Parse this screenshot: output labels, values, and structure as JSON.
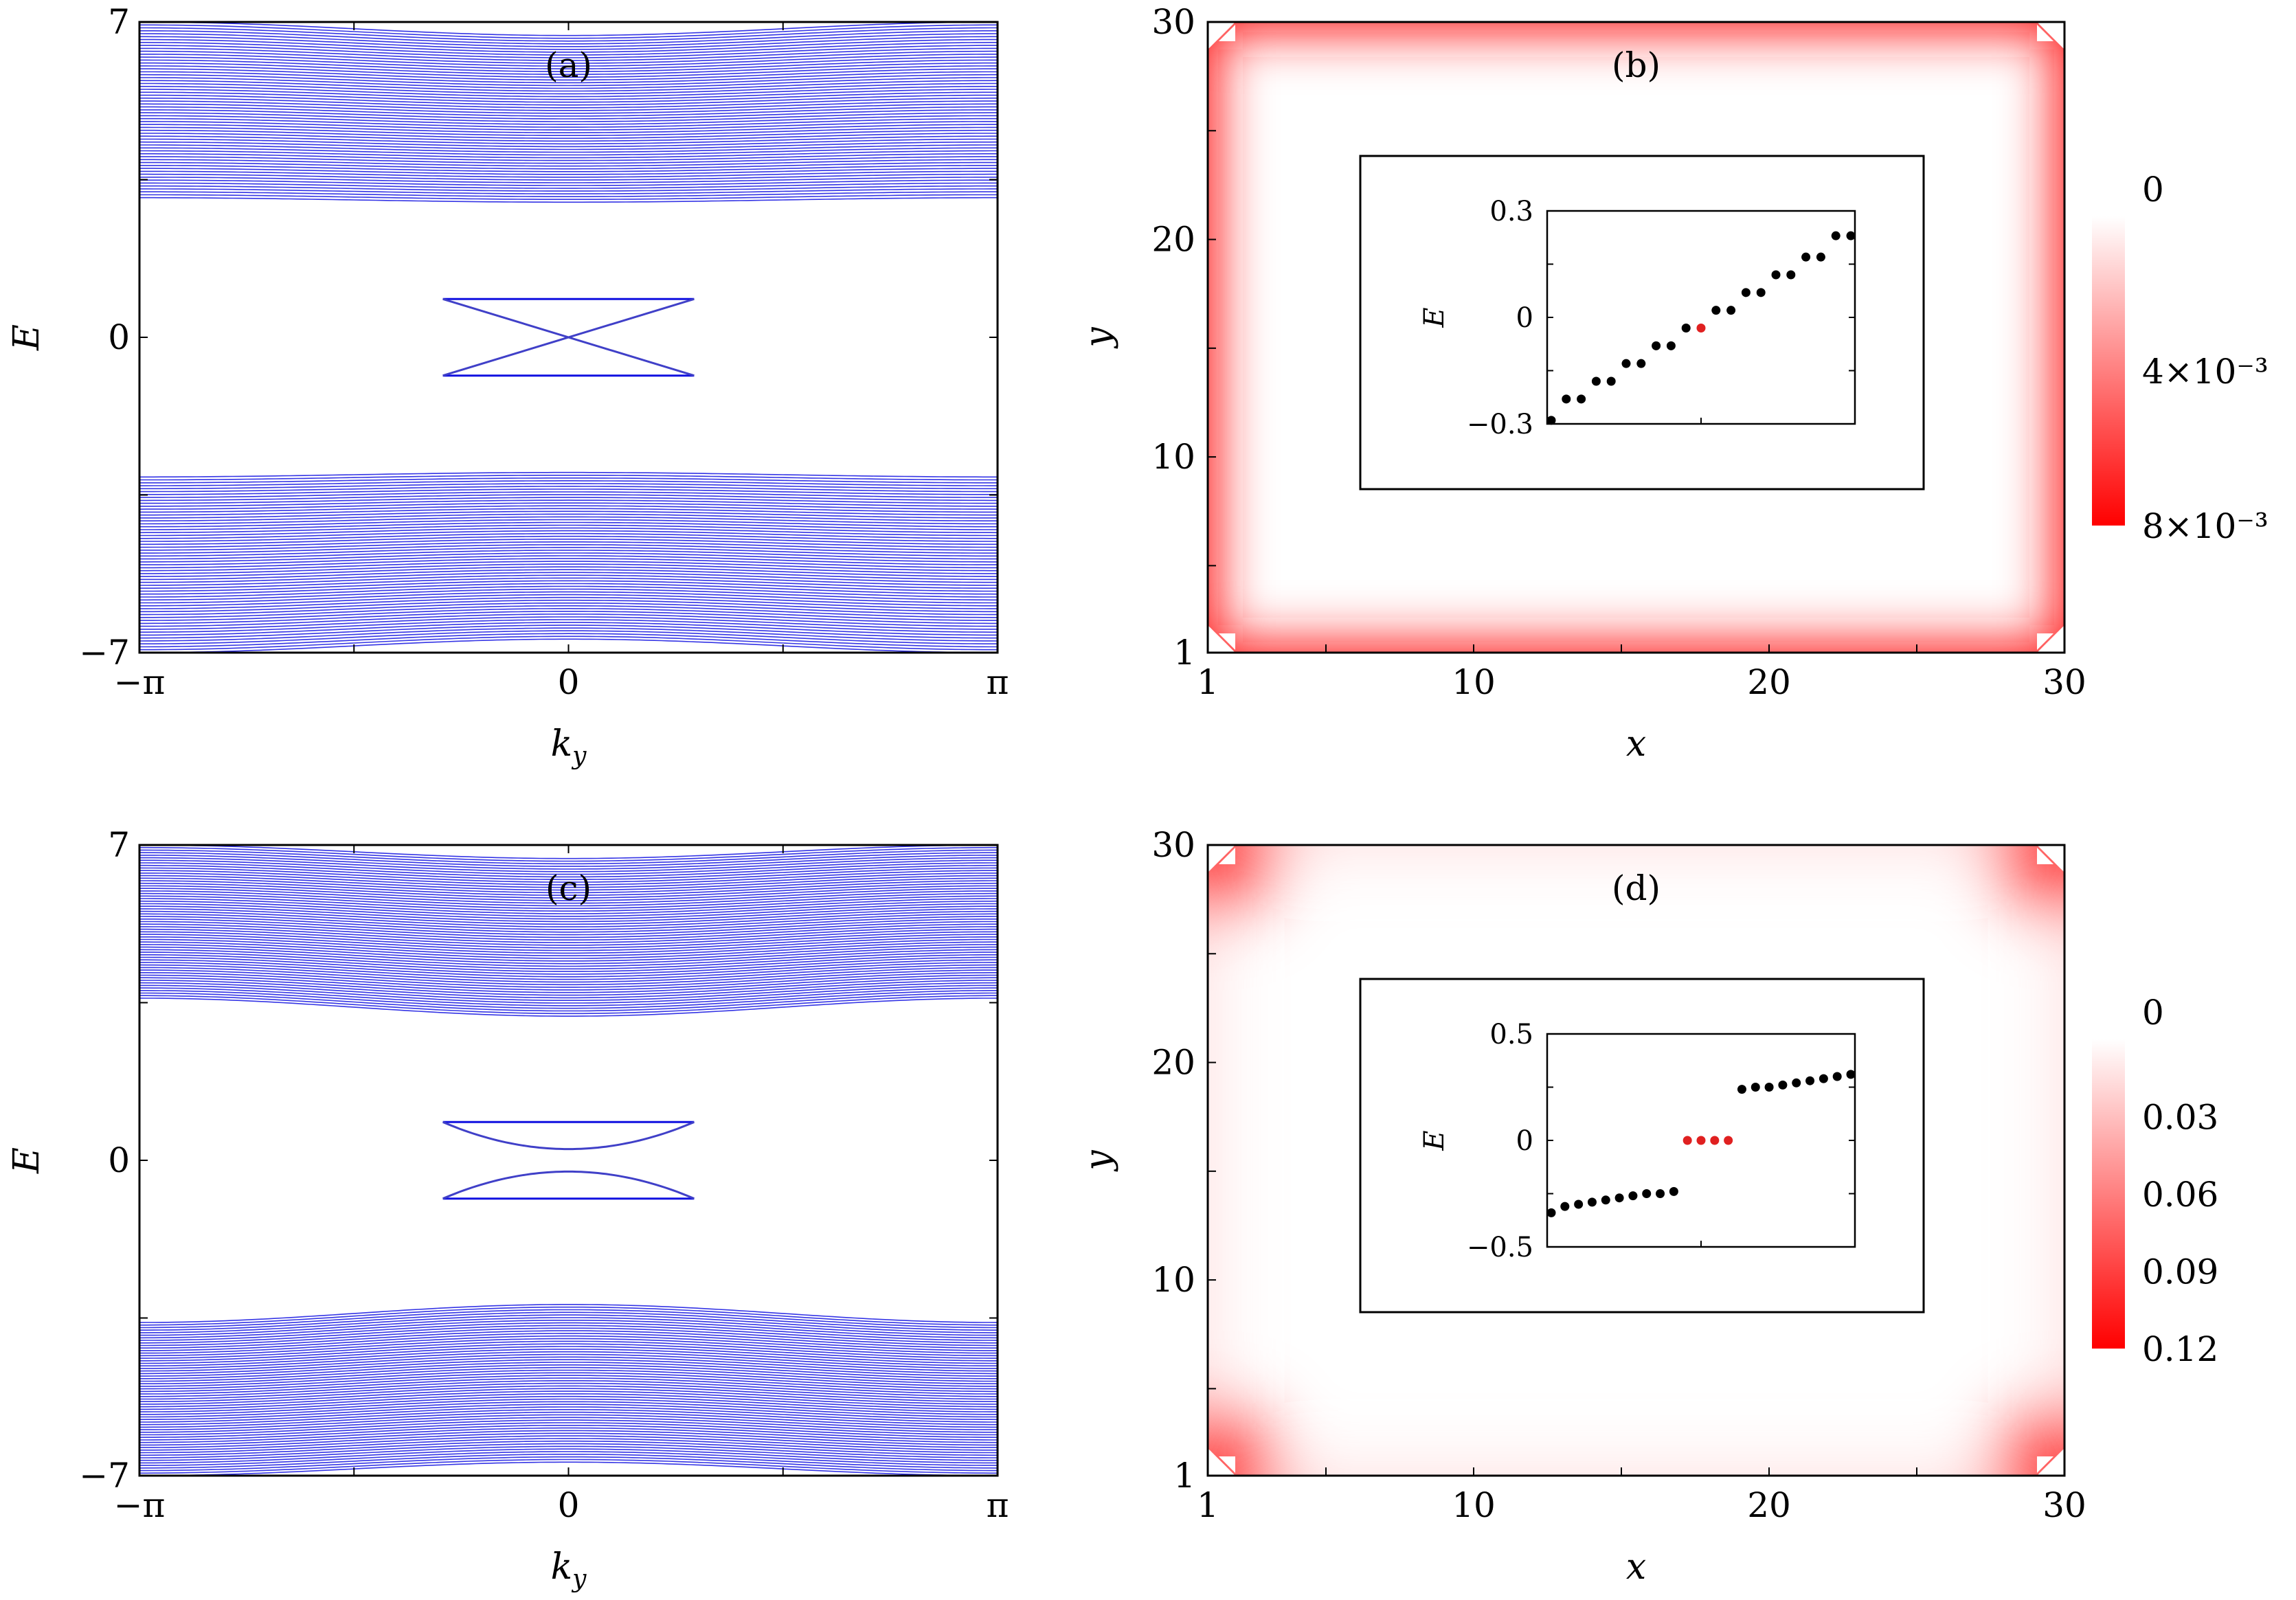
{
  "chart_data": [
    {
      "panel": "(a)",
      "type": "line",
      "xlabel": "k_y",
      "ylabel": "E",
      "xlim": [
        -3.14159,
        3.14159
      ],
      "ylim": [
        -7,
        7
      ],
      "xticklabels": [
        "−π",
        "0",
        "π"
      ],
      "yticklabels": [
        "−7",
        "0",
        "7"
      ],
      "bands": {
        "upper_bulk": {
          "edge_min_at_0": 3.0,
          "edge_at_pi": 3.1,
          "outer_at_0": 6.7,
          "outer_at_pi": 7.0
        },
        "lower_bulk": {
          "edge_max_at_0": -3.0,
          "edge_at_pi": -3.1,
          "outer_at_0": -6.7,
          "outer_at_pi": -7.0
        },
        "flat_gap_edge": 0.85,
        "edge_states": [
          {
            "from": [
              -0.92,
              0.85
            ],
            "to": [
              0.92,
              -0.85
            ],
            "crossing_E": 0
          },
          {
            "from": [
              -0.92,
              -0.85
            ],
            "to": [
              0.92,
              0.85
            ],
            "crossing_E": 0
          }
        ]
      },
      "color": "#1010e0"
    },
    {
      "panel": "(b)",
      "type": "heatmap",
      "xlabel": "x",
      "ylabel": "y",
      "xlim": [
        1,
        30
      ],
      "ylim": [
        1,
        30
      ],
      "xticklabels": [
        "1",
        "10",
        "20",
        "30"
      ],
      "yticklabels": [
        "1",
        "10",
        "20",
        "30"
      ],
      "colorbar": {
        "labels": [
          "0",
          "4×10⁻³",
          "8×10⁻³"
        ],
        "min": 0,
        "max": 0.008,
        "colors": [
          "#ffffff",
          "#ff0000"
        ]
      },
      "pattern": "edge-localized",
      "inset": {
        "type": "scatter",
        "ylabel": "E",
        "ylim": [
          -0.3,
          0.3
        ],
        "yticklabels": [
          "0.3",
          "0",
          "−0.3"
        ],
        "values": [
          -0.29,
          -0.23,
          -0.23,
          -0.18,
          -0.18,
          -0.13,
          -0.13,
          -0.08,
          -0.08,
          -0.03,
          -0.03,
          0.02,
          0.02,
          0.07,
          0.07,
          0.12,
          0.12,
          0.17,
          0.17,
          0.23,
          0.23
        ],
        "highlight_index": [
          10
        ],
        "point_color": "#000000",
        "highlight_color": "#e02020"
      }
    },
    {
      "panel": "(c)",
      "type": "line",
      "xlabel": "k_y",
      "ylabel": "E",
      "xlim": [
        -3.14159,
        3.14159
      ],
      "ylim": [
        -7,
        7
      ],
      "xticklabels": [
        "−π",
        "0",
        "π"
      ],
      "yticklabels": [
        "−7",
        "0",
        "7"
      ],
      "bands": {
        "upper_bulk": {
          "edge_min_at_0": 3.2,
          "edge_at_pi": 3.6,
          "outer_at_0": 6.7,
          "outer_at_pi": 7.0
        },
        "lower_bulk": {
          "edge_max_at_0": -3.2,
          "edge_at_pi": -3.6,
          "outer_at_0": -6.7,
          "outer_at_pi": -7.0
        },
        "flat_gap_edge": 0.85,
        "edge_states": [
          {
            "from": [
              -0.92,
              0.85
            ],
            "min_at_0": 0.25,
            "to": [
              0.92,
              0.85
            ]
          },
          {
            "from": [
              -0.92,
              -0.85
            ],
            "max_at_0": -0.25,
            "to": [
              0.92,
              -0.85
            ]
          }
        ]
      },
      "color": "#1010e0"
    },
    {
      "panel": "(d)",
      "type": "heatmap",
      "xlabel": "x",
      "ylabel": "y",
      "xlim": [
        1,
        30
      ],
      "ylim": [
        1,
        30
      ],
      "xticklabels": [
        "1",
        "10",
        "20",
        "30"
      ],
      "yticklabels": [
        "1",
        "10",
        "20",
        "30"
      ],
      "colorbar": {
        "labels": [
          "0",
          "0.03",
          "0.06",
          "0.09",
          "0.12"
        ],
        "min": 0,
        "max": 0.12,
        "colors": [
          "#ffffff",
          "#ff0000"
        ]
      },
      "pattern": "corner-localized",
      "inset": {
        "type": "scatter",
        "ylabel": "E",
        "ylim": [
          -0.5,
          0.5
        ],
        "yticklabels": [
          "0.5",
          "0",
          "−0.5"
        ],
        "values": [
          -0.34,
          -0.31,
          -0.3,
          -0.29,
          -0.28,
          -0.27,
          -0.26,
          -0.25,
          -0.25,
          -0.24,
          0.0,
          0.0,
          0.0,
          0.0,
          0.24,
          0.25,
          0.25,
          0.26,
          0.27,
          0.28,
          0.29,
          0.3,
          0.31
        ],
        "highlight_index": [
          10,
          11,
          12,
          13
        ],
        "point_color": "#000000",
        "highlight_color": "#e02020"
      }
    }
  ]
}
